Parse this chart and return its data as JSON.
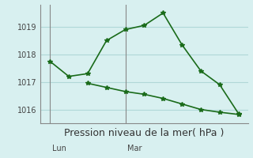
{
  "background_color": "#d8f0f0",
  "grid_color": "#b0d8d8",
  "line_color": "#1a6b1a",
  "xlabel": "Pression niveau de la mer( hPa )",
  "xlabel_fontsize": 9,
  "ylim": [
    1015.5,
    1019.8
  ],
  "yticks": [
    1016,
    1017,
    1018,
    1019
  ],
  "xlim": [
    -0.5,
    10.5
  ],
  "vline_x": [
    0.0,
    4.0
  ],
  "vline_labels": [
    "Lun",
    "Mar"
  ],
  "line1_x": [
    0,
    1,
    2,
    3,
    4,
    5,
    6,
    7,
    8,
    9,
    10
  ],
  "line1_y": [
    1017.75,
    1017.2,
    1017.3,
    1018.5,
    1018.9,
    1019.05,
    1019.5,
    1018.35,
    1017.4,
    1016.9,
    1015.85
  ],
  "line2_x": [
    2,
    3,
    4,
    5,
    6,
    7,
    8,
    9,
    10
  ],
  "line2_y": [
    1016.95,
    1016.8,
    1016.65,
    1016.55,
    1016.4,
    1016.2,
    1016.0,
    1015.9,
    1015.82
  ],
  "marker": "*",
  "marker_size": 4,
  "linewidth": 1.2
}
